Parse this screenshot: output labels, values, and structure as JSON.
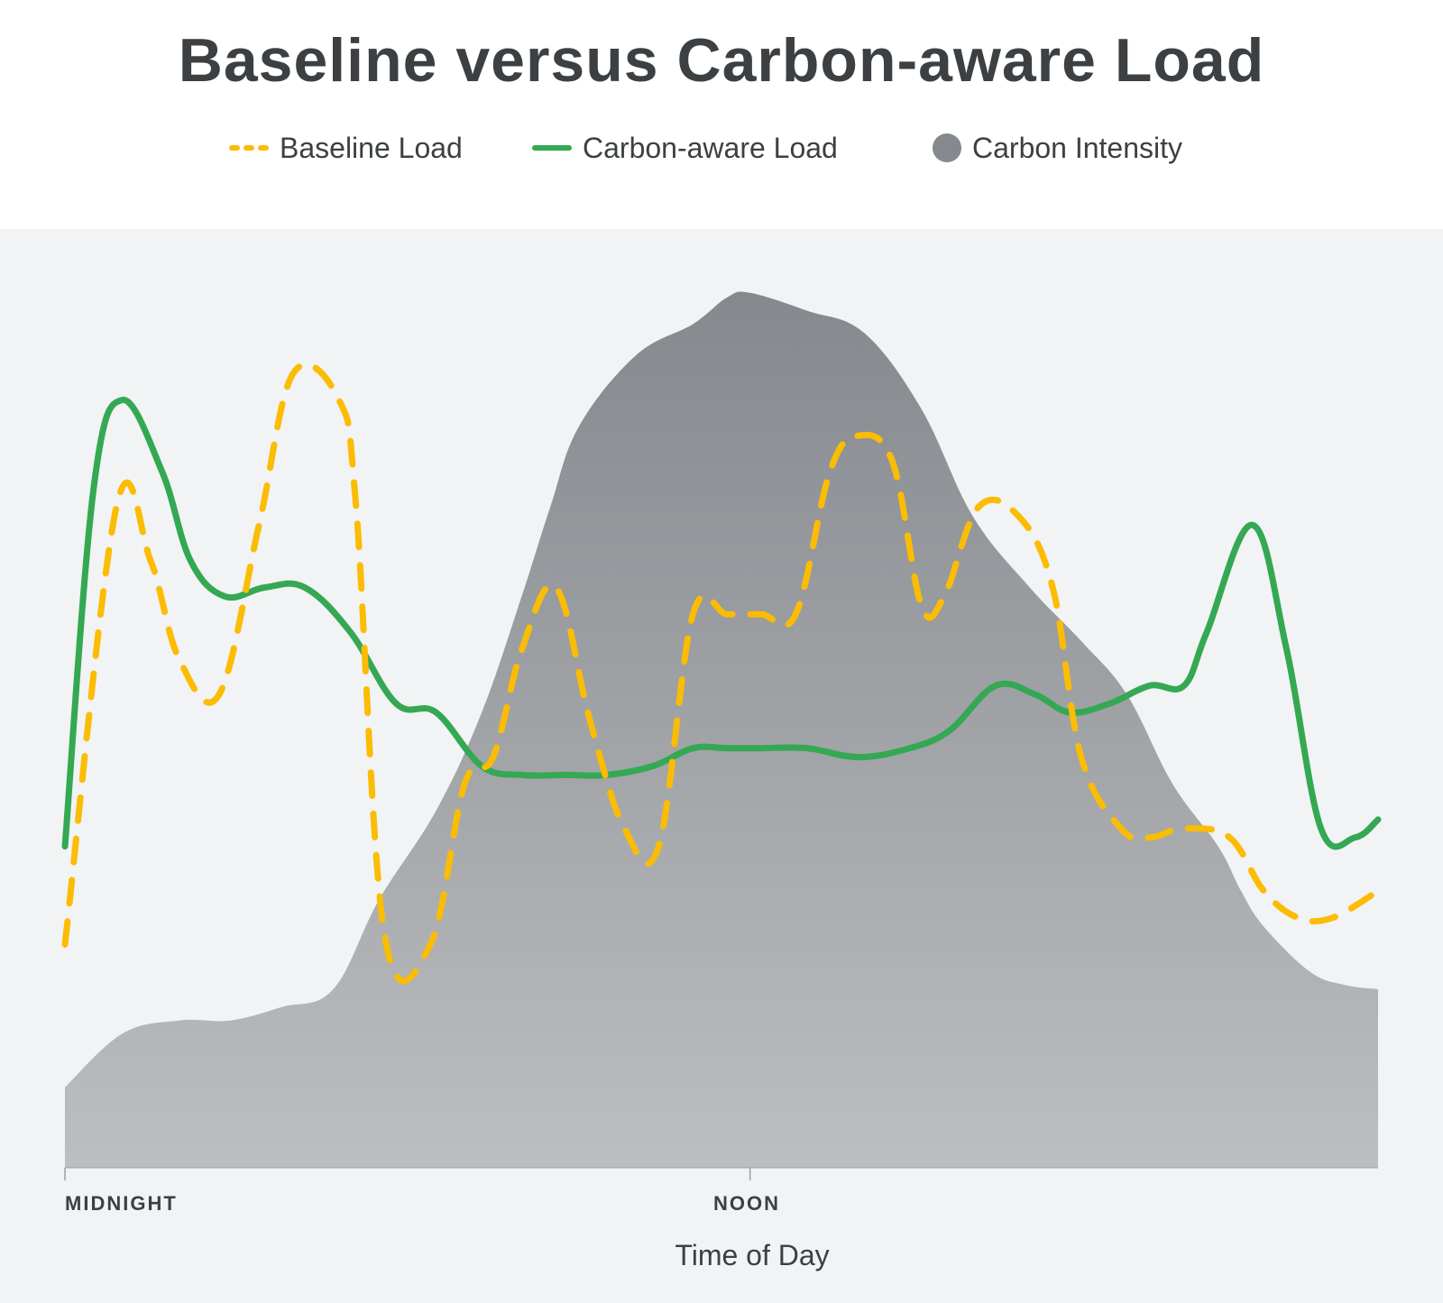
{
  "chart_data": {
    "type": "line",
    "title": "Baseline versus Carbon-aware Load",
    "xlabel": "Time of Day",
    "ylabel": "",
    "x_ticks": [
      "MIDNIGHT",
      "NOON"
    ],
    "xlim": [
      0,
      23
    ],
    "ylim": [
      0,
      100
    ],
    "grid": false,
    "legend_position": "top",
    "series": [
      {
        "name": "Baseline Load",
        "style": "dashed",
        "color": "#fbbc04",
        "x": [
          0,
          0.9,
          1.5,
          2.0,
          2.7,
          3.4,
          4.0,
          4.8,
          5.1,
          5.6,
          6.4,
          7.0,
          7.5,
          8.0,
          8.6,
          9.2,
          9.8,
          10.4,
          11.0,
          11.6,
          12.2,
          12.8,
          13.4,
          13.9,
          14.5,
          15.0,
          15.4,
          16.0,
          16.7,
          17.3,
          17.8,
          18.5,
          19.0,
          19.6,
          20.4,
          21.0,
          21.6,
          22.2,
          23.0
        ],
        "y": [
          25,
          74,
          68,
          57,
          53,
          72,
          89,
          86,
          74,
          26,
          25,
          43,
          46,
          58,
          65,
          50,
          38,
          36,
          62,
          62,
          62,
          62,
          78,
          82,
          79,
          63,
          64,
          74,
          73,
          65,
          46,
          38,
          37,
          38,
          37,
          31,
          28,
          28,
          31
        ]
      },
      {
        "name": "Carbon-aware Load",
        "style": "solid",
        "color": "#34a853",
        "x": [
          0,
          0.5,
          1.0,
          1.7,
          2.2,
          2.8,
          3.5,
          4.2,
          5.0,
          5.8,
          6.5,
          7.3,
          8.0,
          8.8,
          9.5,
          10.3,
          11.0,
          11.6,
          12.2,
          13.0,
          13.9,
          14.8,
          15.5,
          16.3,
          17.0,
          17.6,
          18.3,
          19.0,
          19.6,
          20.0,
          20.8,
          21.4,
          22.0,
          22.6,
          23.0
        ],
        "y": [
          36,
          76,
          86,
          78,
          68,
          64,
          65,
          65,
          60,
          52,
          51,
          45,
          44,
          44,
          44,
          45,
          47,
          47,
          47,
          47,
          46,
          47,
          49,
          54,
          53,
          51,
          52,
          54,
          54,
          60,
          72,
          58,
          38,
          37,
          39
        ]
      },
      {
        "name": "Carbon Intensity",
        "style": "area",
        "color": "#85888d",
        "x": [
          0,
          1.0,
          2.0,
          2.9,
          3.8,
          4.7,
          5.5,
          6.5,
          7.3,
          8.0,
          8.5,
          9.0,
          10.0,
          11.0,
          11.6,
          12.0,
          13.0,
          14.0,
          15.0,
          15.9,
          16.9,
          17.8,
          18.6,
          19.4,
          20.2,
          20.6,
          21.0,
          21.8,
          22.4,
          23.0
        ],
        "y": [
          9,
          15,
          16.5,
          16.5,
          18,
          20,
          30,
          40,
          51,
          64,
          74,
          83,
          91,
          94.5,
          97.5,
          98,
          96,
          93.5,
          85,
          73,
          65,
          59,
          53,
          43,
          36,
          31,
          27,
          22,
          20.5,
          20
        ]
      }
    ]
  },
  "legend": {
    "items": [
      {
        "label": "Baseline Load"
      },
      {
        "label": "Carbon-aware Load"
      },
      {
        "label": "Carbon Intensity"
      }
    ]
  },
  "colors": {
    "background": "#f1f3f4",
    "baseline": "#fbbc04",
    "carbon_aware": "#34a853",
    "intensity_top": "#85888d",
    "intensity_bottom": "#bcbec0"
  }
}
